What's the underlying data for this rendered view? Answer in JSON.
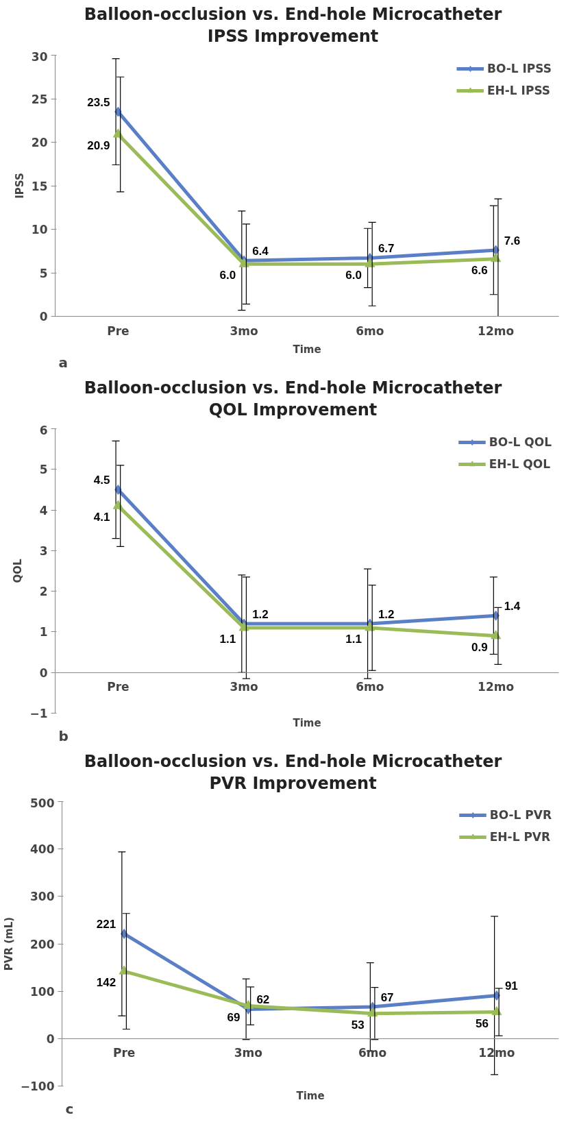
{
  "chart_data": [
    {
      "type": "line",
      "title": "Balloon-occlusion vs. End-hole Microcatheter\nIPSS Improvement",
      "xlabel": "Time",
      "ylabel": "IPSS",
      "categories": [
        "Pre",
        "3mo",
        "6mo",
        "12mo"
      ],
      "ylim": [
        0,
        30
      ],
      "yticks": [
        0,
        5,
        10,
        15,
        20,
        25,
        30
      ],
      "grid": false,
      "legend": "top right",
      "data_labels": true,
      "annotations": [
        "a"
      ],
      "series": [
        {
          "name": "BO-L IPSS",
          "color": "#5b7fc7",
          "marker": "diamond",
          "values": [
            23.5,
            6.4,
            6.7,
            7.6
          ],
          "value_labels": [
            "23.5",
            "6.4",
            "6.7",
            "7.6"
          ],
          "errors": [
            6.1,
            5.7,
            3.4,
            5.1
          ]
        },
        {
          "name": "EH-L IPSS",
          "color": "#9bbb59",
          "marker": "triangle",
          "values": [
            20.9,
            6.0,
            6.0,
            6.6
          ],
          "value_labels": [
            "20.9",
            "6.0",
            "6.0",
            "6.6"
          ],
          "errors": [
            6.6,
            4.6,
            4.8,
            [
              0,
              13.5
            ]
          ]
        }
      ]
    },
    {
      "type": "line",
      "title": "Balloon-occlusion vs. End-hole Microcatheter\nQOL Improvement",
      "xlabel": "Time",
      "ylabel": "QOL",
      "categories": [
        "Pre",
        "3mo",
        "6mo",
        "12mo"
      ],
      "ylim": [
        -1,
        6
      ],
      "yticks": [
        -1,
        0,
        1,
        2,
        3,
        4,
        5,
        6
      ],
      "grid": false,
      "legend": "top right",
      "data_labels": true,
      "annotations": [
        "b"
      ],
      "series": [
        {
          "name": "BO-L QOL",
          "color": "#5b7fc7",
          "marker": "diamond",
          "values": [
            4.5,
            1.2,
            1.2,
            1.4
          ],
          "value_labels": [
            "4.5",
            "1.2",
            "1.2",
            "1.4"
          ],
          "errors": [
            1.2,
            1.2,
            1.35,
            0.95
          ]
        },
        {
          "name": "EH-L QOL",
          "color": "#9bbb59",
          "marker": "triangle",
          "values": [
            4.1,
            1.1,
            1.1,
            0.9
          ],
          "value_labels": [
            "4.1",
            "1.1",
            "1.1",
            "0.9"
          ],
          "errors": [
            1.0,
            1.25,
            1.05,
            0.7
          ]
        }
      ]
    },
    {
      "type": "line",
      "title": "Balloon-occlusion vs. End-hole Microcatheter\nPVR Improvement",
      "xlabel": "Time",
      "ylabel": "PVR (mL)",
      "categories": [
        "Pre",
        "3mo",
        "6mo",
        "12mo"
      ],
      "ylim": [
        -100,
        500
      ],
      "yticks": [
        -100,
        0,
        100,
        200,
        300,
        400,
        500
      ],
      "grid": false,
      "legend": "top right",
      "data_labels": true,
      "annotations": [
        "c"
      ],
      "series": [
        {
          "name": "BO-L PVR",
          "color": "#5b7fc7",
          "marker": "diamond",
          "values": [
            221,
            62,
            67,
            91
          ],
          "errors": [
            173,
            64,
            93,
            167
          ]
        },
        {
          "name": "EH-L PVR",
          "color": "#9bbb59",
          "marker": "triangle",
          "values": [
            142,
            69,
            53,
            56
          ],
          "errors": [
            122,
            40,
            55,
            50
          ]
        }
      ]
    }
  ]
}
